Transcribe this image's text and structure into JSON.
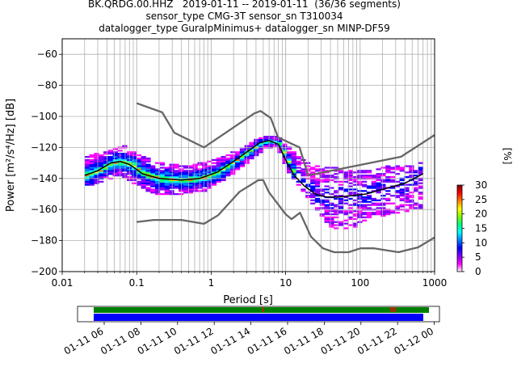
{
  "title_lines": [
    "BK.QRDG.00.HHZ   2019-01-11 -- 2019-01-11  (36/36 segments)",
    "sensor_type CMG-3T sensor_sn T310034",
    "datalogger_type GuralpMinimus+ datalogger_sn MINP-DF59"
  ],
  "chart_data": [
    {
      "type": "heatmap",
      "subtype": "probabilistic power spectral density",
      "xlabel": "Period [s]",
      "ylabel": "Power [m²/s⁴/Hz] [dB]",
      "x_scale": "log",
      "xlim": [
        0.01,
        1000
      ],
      "ylim": [
        -200,
        -50
      ],
      "x_ticks": [
        0.01,
        0.1,
        1,
        10,
        100,
        1000
      ],
      "x_tick_labels": [
        "0.01",
        "0.1",
        "1",
        "10",
        "100",
        "1000"
      ],
      "y_ticks": [
        -200,
        -180,
        -160,
        -140,
        -120,
        -100,
        -80,
        -60
      ],
      "y_tick_labels": [
        "−200",
        "−180",
        "−160",
        "−140",
        "−120",
        "−100",
        "−80",
        "−60"
      ],
      "grid": true,
      "colorbar": {
        "label": "[%]",
        "range": [
          0,
          30
        ],
        "ticks": [
          0,
          5,
          10,
          15,
          20,
          25,
          30
        ],
        "tick_labels": [
          "0",
          "5",
          "10",
          "15",
          "20",
          "25",
          "30"
        ],
        "colors": [
          "#ffffff",
          "#ff00ff",
          "#8000ff",
          "#0000ff",
          "#0080ff",
          "#00ffff",
          "#00ff80",
          "#80ff00",
          "#ffff00",
          "#ff8000",
          "#ff0000",
          "#800000"
        ]
      },
      "series": [
        {
          "role": "high-noise-model",
          "color": "#666666",
          "x": [
            0.1,
            0.22,
            0.32,
            0.8,
            3.8,
            4.6,
            6.3,
            7.9,
            15.4,
            20,
            354.8,
            1000
          ],
          "y": [
            -91.5,
            -97.4,
            -110.5,
            -120,
            -98,
            -96.5,
            -101,
            -113.5,
            -120,
            -138,
            -126,
            -112
          ]
        },
        {
          "role": "low-noise-model",
          "color": "#666666",
          "x": [
            0.1,
            0.17,
            0.4,
            0.8,
            1.24,
            2.4,
            4.3,
            5,
            6,
            10,
            12,
            15.6,
            21.9,
            31.6,
            45,
            70,
            101,
            154,
            328,
            600,
            1000
          ],
          "y": [
            -168,
            -166.7,
            -166.7,
            -169.2,
            -163.7,
            -148.6,
            -141.1,
            -141.1,
            -149,
            -163,
            -166.2,
            -162.1,
            -177.5,
            -185,
            -187.5,
            -187.5,
            -185,
            -185,
            -187.5,
            -184.4,
            -178
          ]
        },
        {
          "role": "mode",
          "color": "#000000",
          "x": [
            0.02,
            0.03,
            0.045,
            0.06,
            0.08,
            0.12,
            0.2,
            0.4,
            0.7,
            1.2,
            2,
            3,
            4.5,
            6,
            8,
            10,
            13,
            18,
            25,
            35,
            50,
            80,
            120,
            200,
            400,
            700
          ],
          "y": [
            -138,
            -135,
            -130,
            -129,
            -131,
            -137,
            -140,
            -141,
            -140,
            -136,
            -129,
            -123,
            -117,
            -115.5,
            -118,
            -128,
            -138,
            -145,
            -150,
            -152,
            -152,
            -151,
            -150,
            -147,
            -143,
            -137
          ]
        }
      ],
      "density_bands": [
        {
          "x": [
            0.02,
            0.04,
            0.06,
            0.1,
            0.2,
            0.4,
            0.8,
            1.5,
            3,
            5,
            7,
            10,
            15,
            25,
            40,
            70,
            120,
            200,
            400,
            700
          ],
          "low": [
            -145,
            -140,
            -137,
            -145,
            -150,
            -149,
            -147,
            -139,
            -128,
            -120,
            -118,
            -134,
            -146,
            -160,
            -172,
            -172,
            -165,
            -163,
            -160,
            -158
          ],
          "high": [
            -126,
            -123,
            -119,
            -126,
            -130,
            -133,
            -130,
            -126,
            -118,
            -113,
            -113,
            -120,
            -128,
            -133,
            -133,
            -135,
            -135,
            -133,
            -132,
            -130
          ]
        }
      ]
    },
    {
      "type": "timeline",
      "x_tick_labels": [
        "01-11 06",
        "01-11 08",
        "01-11 10",
        "01-11 12",
        "01-11 14",
        "01-11 16",
        "01-11 18",
        "01-11 20",
        "01-11 22",
        "01-12 00"
      ],
      "coverage_bars": [
        {
          "name": "data",
          "color": "#008000"
        },
        {
          "name": "psd",
          "color": "#0000ff"
        }
      ],
      "gap_markers": {
        "color": "#ff0000"
      }
    }
  ]
}
